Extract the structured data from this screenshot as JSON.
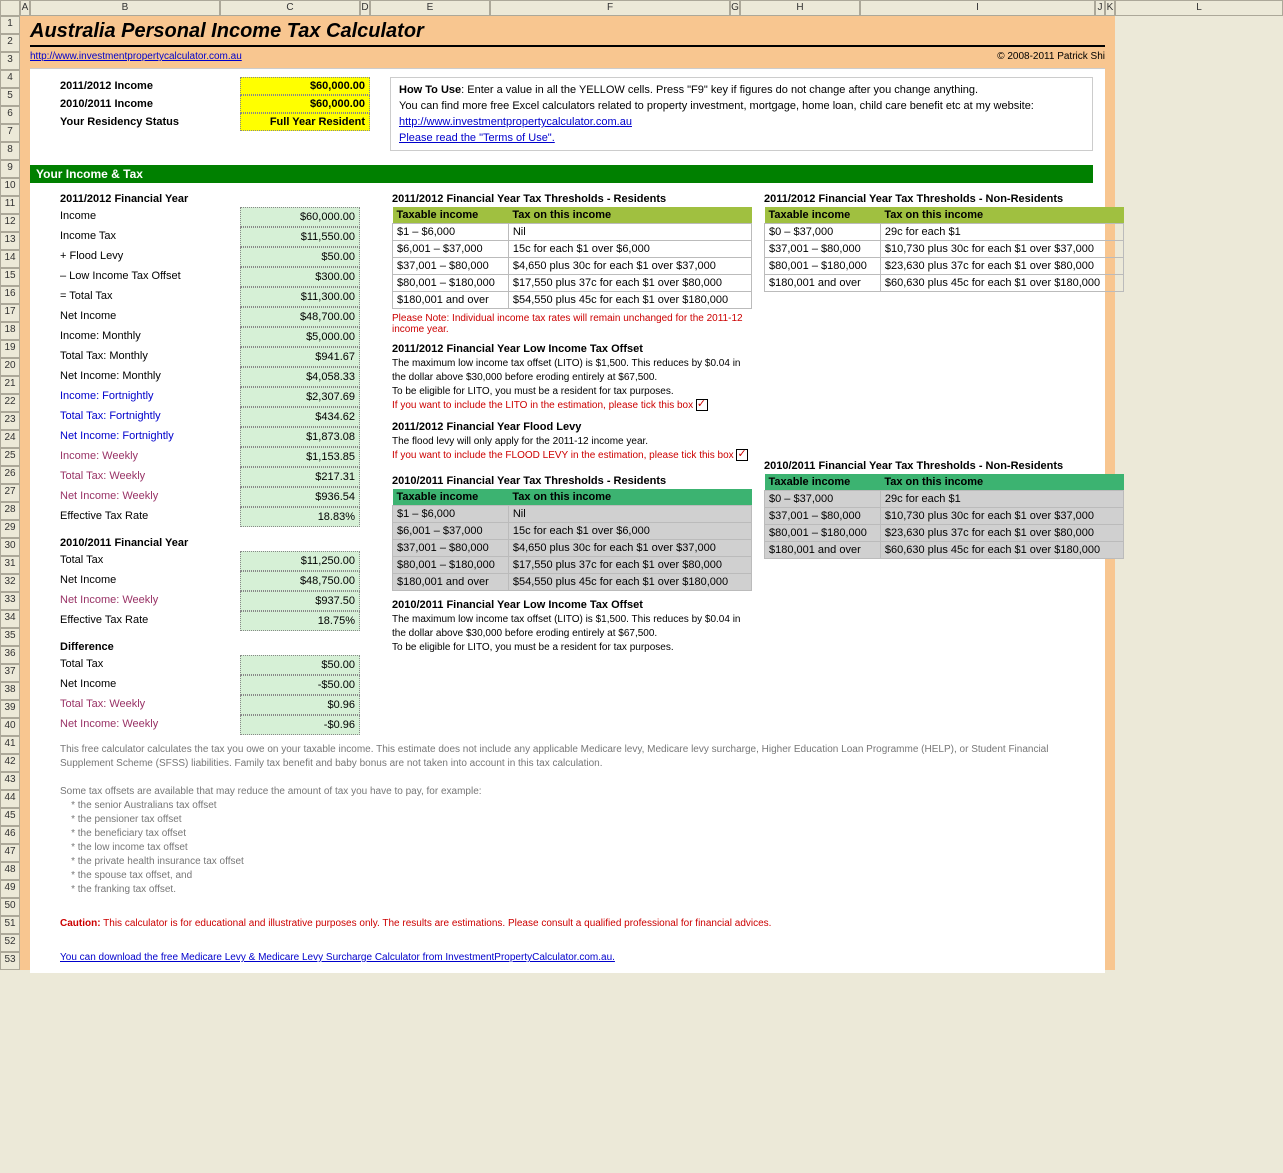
{
  "title": "Australia Personal Income Tax Calculator",
  "source_url": "http://www.investmentpropertycalculator.com.au",
  "copyright": "© 2008-2011 Patrick Shi",
  "columns": [
    "A",
    "B",
    "C",
    "D",
    "E",
    "F",
    "G",
    "H",
    "I",
    "J",
    "K",
    "L"
  ],
  "inputs": {
    "income_2012_label": "2011/2012 Income",
    "income_2012_value": "$60,000.00",
    "income_2011_label": "2010/2011 Income",
    "income_2011_value": "$60,000.00",
    "residency_label": "Your Residency Status",
    "residency_value": "Full Year Resident"
  },
  "howto": {
    "line1a": "How To Use",
    "line1b": ": Enter a value in all the YELLOW cells. Press \"F9\" key if figures do not change after you change anything.",
    "line2": "You can find more free Excel calculators related to property investment, mortgage, home loan, child care benefit etc at my website:",
    "link1": "http://www.investmentpropertycalculator.com.au",
    "link2": "Please read the \"Terms of Use\"."
  },
  "section_header": "Your Income & Tax",
  "fy2012": {
    "header": "2011/2012 Financial Year",
    "rows": [
      {
        "label": "Income",
        "value": "$60,000.00",
        "cls": ""
      },
      {
        "label": "   Income Tax",
        "value": "$11,550.00",
        "cls": ""
      },
      {
        "label": "   + Flood Levy",
        "value": "$50.00",
        "cls": ""
      },
      {
        "label": "   – Low Income Tax Offset",
        "value": "$300.00",
        "cls": ""
      },
      {
        "label": "= Total Tax",
        "value": "$11,300.00",
        "cls": ""
      },
      {
        "label": "Net Income",
        "value": "$48,700.00",
        "cls": ""
      },
      {
        "label": "Income: Monthly",
        "value": "$5,000.00",
        "cls": ""
      },
      {
        "label": "Total Tax: Monthly",
        "value": "$941.67",
        "cls": ""
      },
      {
        "label": "Net Income: Monthly",
        "value": "$4,058.33",
        "cls": ""
      },
      {
        "label": "Income: Fortnightly",
        "value": "$2,307.69",
        "cls": "blue-txt"
      },
      {
        "label": "Total Tax: Fortnightly",
        "value": "$434.62",
        "cls": "blue-txt"
      },
      {
        "label": "Net Income: Fortnightly",
        "value": "$1,873.08",
        "cls": "blue-txt"
      },
      {
        "label": "Income: Weekly",
        "value": "$1,153.85",
        "cls": "purple-txt"
      },
      {
        "label": "Total Tax: Weekly",
        "value": "$217.31",
        "cls": "purple-txt"
      },
      {
        "label": "Net Income: Weekly",
        "value": "$936.54",
        "cls": "purple-txt"
      },
      {
        "label": "Effective Tax Rate",
        "value": "18.83%",
        "cls": ""
      }
    ]
  },
  "fy2011": {
    "header": "2010/2011 Financial Year",
    "rows": [
      {
        "label": "Total Tax",
        "value": "$11,250.00",
        "cls": ""
      },
      {
        "label": "Net Income",
        "value": "$48,750.00",
        "cls": ""
      },
      {
        "label": "Net Income: Weekly",
        "value": "$937.50",
        "cls": "purple-txt"
      },
      {
        "label": "Effective Tax Rate",
        "value": "18.75%",
        "cls": ""
      }
    ]
  },
  "difference": {
    "header": "Difference",
    "rows": [
      {
        "label": "Total Tax",
        "value": "$50.00",
        "cls": ""
      },
      {
        "label": "Net Income",
        "value": "-$50.00",
        "cls": ""
      },
      {
        "label": "Total Tax: Weekly",
        "value": "$0.96",
        "cls": "purple-txt"
      },
      {
        "label": "Net Income: Weekly",
        "value": "-$0.96",
        "cls": "purple-txt"
      }
    ]
  },
  "thresholds_2012_res": {
    "title": "2011/2012 Financial Year Tax Thresholds - Residents",
    "th1": "Taxable income",
    "th2": "Tax on this income",
    "rows": [
      [
        "$1 – $6,000",
        "Nil"
      ],
      [
        "$6,001 – $37,000",
        "15c for each $1 over $6,000"
      ],
      [
        "$37,001 – $80,000",
        "$4,650 plus 30c for each $1 over $37,000"
      ],
      [
        "$80,001 – $180,000",
        "$17,550 plus 37c for each $1 over $80,000"
      ],
      [
        "$180,001 and over",
        "$54,550 plus 45c for each $1 over $180,000"
      ]
    ]
  },
  "thresholds_2012_nonres": {
    "title": "2011/2012 Financial Year Tax Thresholds  - Non-Residents",
    "th1": "Taxable income",
    "th2": "Tax on this income",
    "rows": [
      [
        "$0 – $37,000",
        "29c for each $1"
      ],
      [
        "$37,001 – $80,000",
        "$10,730 plus 30c for each $1 over $37,000"
      ],
      [
        "$80,001 – $180,000",
        "$23,630 plus 37c for each $1 over $80,000"
      ],
      [
        "$180,001 and over",
        "$60,630 plus 45c for each $1 over $180,000"
      ]
    ]
  },
  "please_note": "Please Note: Individual income tax rates will remain unchanged for the 2011-12 income year.",
  "lito_2012": {
    "title": "2011/2012 Financial Year Low Income Tax Offset",
    "line1": "The maximum low income tax offset (LITO) is $1,500. This reduces by $0.04 in the dollar above $30,000 before eroding entirely at $67,500.",
    "line2": "To be eligible for LITO, you must be a resident for tax purposes.",
    "line3": "If you want to include the LITO in the estimation, please tick this box"
  },
  "flood": {
    "title": "2011/2012 Financial Year Flood Levy",
    "line1": "The flood levy will only apply for the 2011-12 income year.",
    "line2": "If you want to include the FLOOD LEVY in the estimation, please tick this box"
  },
  "thresholds_2011_res": {
    "title": "2010/2011 Financial Year Tax Thresholds - Residents",
    "th1": "Taxable income",
    "th2": "Tax on this income",
    "rows": [
      [
        "$1 – $6,000",
        "Nil"
      ],
      [
        "$6,001 – $37,000",
        "15c for each $1 over $6,000"
      ],
      [
        "$37,001 – $80,000",
        "$4,650 plus 30c for each $1 over $37,000"
      ],
      [
        "$80,001 – $180,000",
        "$17,550 plus 37c for each $1 over $80,000"
      ],
      [
        "$180,001 and over",
        "$54,550 plus 45c for each $1 over $180,000"
      ]
    ]
  },
  "thresholds_2011_nonres": {
    "title": "2010/2011 Financial Year Tax Thresholds  - Non-Residents",
    "th1": "Taxable income",
    "th2": "Tax on this income",
    "rows": [
      [
        "$0 – $37,000",
        "29c for each $1"
      ],
      [
        "$37,001 – $80,000",
        "$10,730 plus 30c for each $1 over $37,000"
      ],
      [
        "$80,001 – $180,000",
        "$23,630 plus 37c for each $1 over $80,000"
      ],
      [
        "$180,001 and over",
        "$60,630 plus 45c for each $1 over $180,000"
      ]
    ]
  },
  "lito_2011": {
    "title": "2010/2011 Financial Year Low Income Tax Offset",
    "line1": "The maximum low income tax offset (LITO) is $1,500. This reduces by $0.04 in the dollar above $30,000 before eroding entirely at $67,500.",
    "line2": "To be eligible for LITO, you must be a resident for tax purposes."
  },
  "footer": {
    "disclaimer": "This free calculator calculates the tax you owe on your taxable income. This estimate does not include any applicable Medicare levy, Medicare levy surcharge, Higher Education Loan Programme (HELP), or Student Financial Supplement Scheme (SFSS) liabilities. Family tax benefit and baby bonus are not taken into account in this tax calculation.",
    "offsets_intro": "Some tax offsets are available that may reduce the amount of tax you have to pay, for example:",
    "offsets": [
      "* the senior Australians tax offset",
      "* the pensioner tax offset",
      "* the beneficiary tax offset",
      "* the low income tax offset",
      "* the private health insurance tax offset",
      "* the spouse tax offset, and",
      "* the franking tax offset."
    ],
    "caution_label": "Caution:",
    "caution": " This calculator is for educational and illustrative purposes only. The results are estimations. Please consult a qualified professional for financial advices.",
    "download": "You can download the free Medicare Levy & Medicare Levy Surcharge Calculator from InvestmentPropertyCalculator.com.au."
  }
}
